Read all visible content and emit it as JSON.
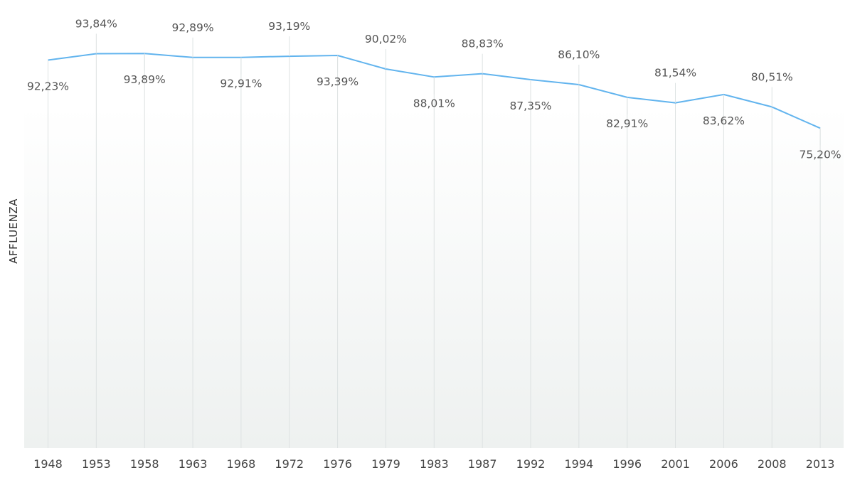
{
  "chart_data": {
    "type": "line",
    "title": "",
    "xlabel": "",
    "ylabel": "AFFLUENZA",
    "x": [
      "1948",
      "1953",
      "1958",
      "1963",
      "1968",
      "1972",
      "1976",
      "1979",
      "1983",
      "1987",
      "1992",
      "1994",
      "1996",
      "2001",
      "2006",
      "2008",
      "2013"
    ],
    "series": [
      {
        "values": [
          92.23,
          93.84,
          93.89,
          92.89,
          92.91,
          93.19,
          93.39,
          90.02,
          88.01,
          88.83,
          87.35,
          86.1,
          82.91,
          81.54,
          83.62,
          80.51,
          75.2
        ],
        "labels": [
          "92,23%",
          "93,84%",
          "93,89%",
          "92,89%",
          "92,91%",
          "93,19%",
          "93,39%",
          "90,02%",
          "88,01%",
          "88,83%",
          "87,35%",
          "86,10%",
          "82,91%",
          "81,54%",
          "83,62%",
          "80,51%",
          "75,20%"
        ],
        "label_side": [
          "below",
          "above",
          "below",
          "above",
          "below",
          "above",
          "below",
          "above",
          "below",
          "above",
          "below",
          "above",
          "below",
          "above",
          "below",
          "above",
          "below"
        ]
      }
    ],
    "ylim": [
      0,
      100
    ],
    "grid": "vertical",
    "colors": {
      "line": "#62b4ee",
      "grid": "#dde2e2",
      "bg_top": "#ffffff",
      "bg_bottom": "#eef1f0"
    }
  }
}
